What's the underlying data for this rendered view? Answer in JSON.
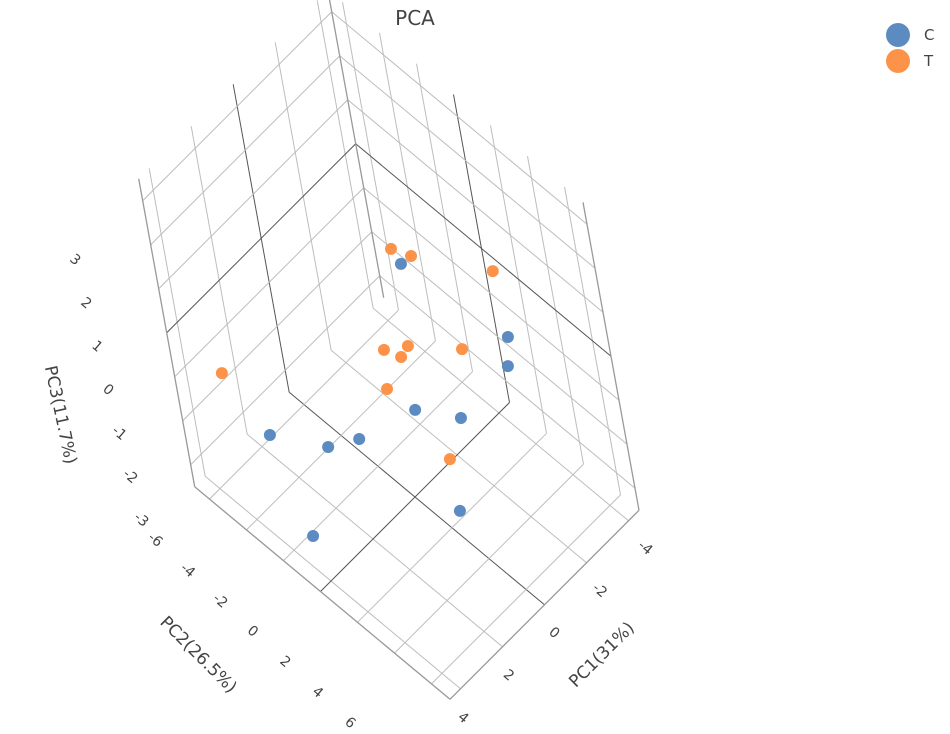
{
  "chart_data": {
    "type": "scatter3d",
    "title": "PCA",
    "xlabel": "PC1(31%)",
    "ylabel": "PC2(26.5%)",
    "zlabel": "PC3(11.7%)",
    "xlim": [
      -4.5,
      4.5
    ],
    "ylim": [
      -6.8,
      7
    ],
    "zlim": [
      -3.5,
      3.5
    ],
    "xticks": [
      "-4",
      "-2",
      "0",
      "2",
      "4"
    ],
    "yticks": [
      "-6",
      "-4",
      "-2",
      "0",
      "2",
      "4",
      "6"
    ],
    "zticks": [
      "-3",
      "-2",
      "-1",
      "0",
      "1",
      "2",
      "3"
    ],
    "legend_position": "top-right",
    "grid": true,
    "series": [
      {
        "name": "C",
        "color": "#5b8bc0",
        "points": [
          [
            -0.61,
            0.84,
            1.8
          ],
          [
            -2.77,
            3.39,
            0
          ],
          [
            -2.5,
            3.48,
            -0.5
          ],
          [
            0.16,
            1.27,
            -1
          ],
          [
            -0.62,
            2.86,
            -1
          ],
          [
            3.47,
            -3.04,
            -1.5
          ],
          [
            2.52,
            -0.97,
            -1.5
          ],
          [
            1.64,
            -0.29,
            -1.5
          ],
          [
            0.36,
            3.27,
            -2.5
          ],
          [
            4.19,
            -0.32,
            -2.5
          ]
        ]
      },
      {
        "name": "T",
        "color": "#fd9349",
        "points": [
          [
            -0.59,
            0.41,
            2
          ],
          [
            -0.84,
            1.21,
            2
          ],
          [
            -2.7,
            3.3,
            1.5
          ],
          [
            0.73,
            0.88,
            0.5
          ],
          [
            0.11,
            1.47,
            0.5
          ],
          [
            0.35,
            1.29,
            0.3
          ],
          [
            -0.98,
            3.16,
            0.5
          ],
          [
            0.71,
            0.59,
            -0.5
          ],
          [
            3.87,
            -4.75,
            -0.5
          ],
          [
            0.2,
            2.98,
            -1.5
          ]
        ]
      }
    ]
  }
}
